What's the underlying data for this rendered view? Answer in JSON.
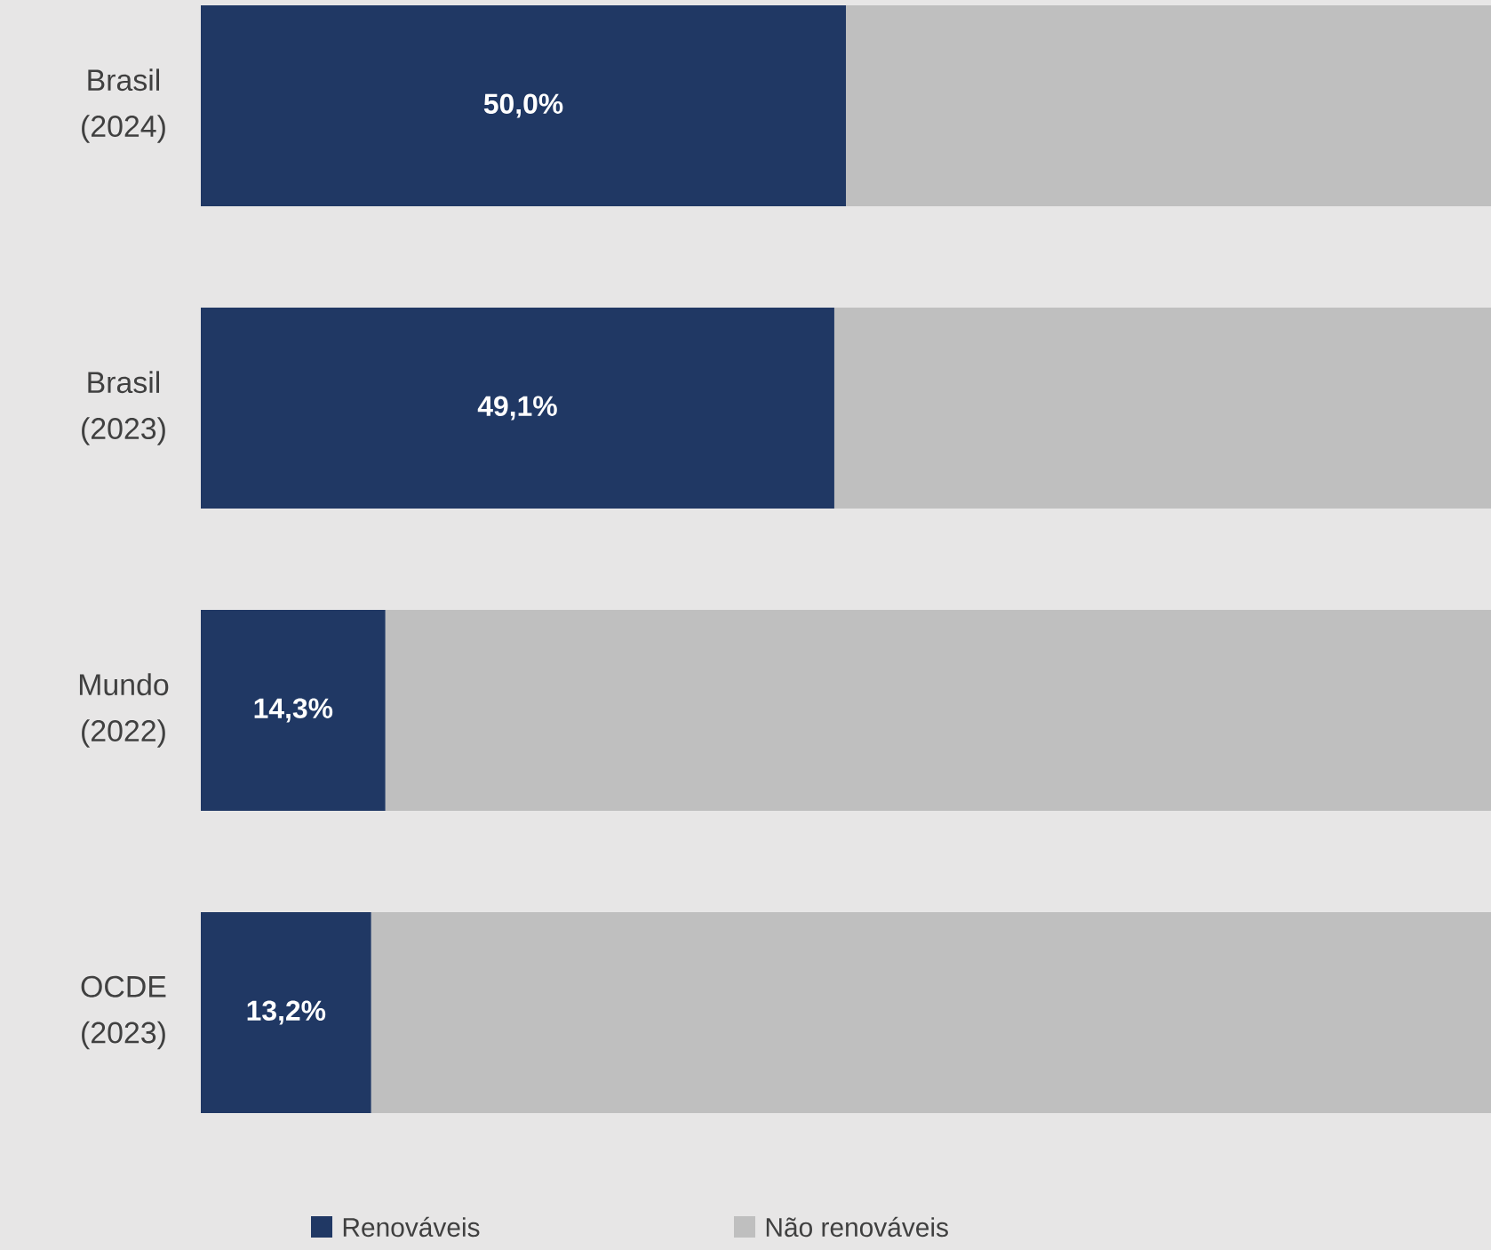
{
  "chart_data": {
    "type": "bar",
    "orientation": "horizontal",
    "stacked": true,
    "categories": [
      "Brasil (2024)",
      "Brasil (2023)",
      "Mundo (2022)",
      "OCDE (2023)"
    ],
    "series": [
      {
        "name": "Renováveis",
        "color": "#203864",
        "values": [
          50.0,
          49.1,
          14.3,
          13.2
        ],
        "value_labels": [
          "50,0%",
          "49,1%",
          "14,3%",
          "13,2%"
        ]
      },
      {
        "name": "Não renováveis",
        "color": "#bfbfbf",
        "values": [
          50.0,
          50.9,
          85.7,
          86.8
        ]
      }
    ],
    "legend": "bottom"
  }
}
